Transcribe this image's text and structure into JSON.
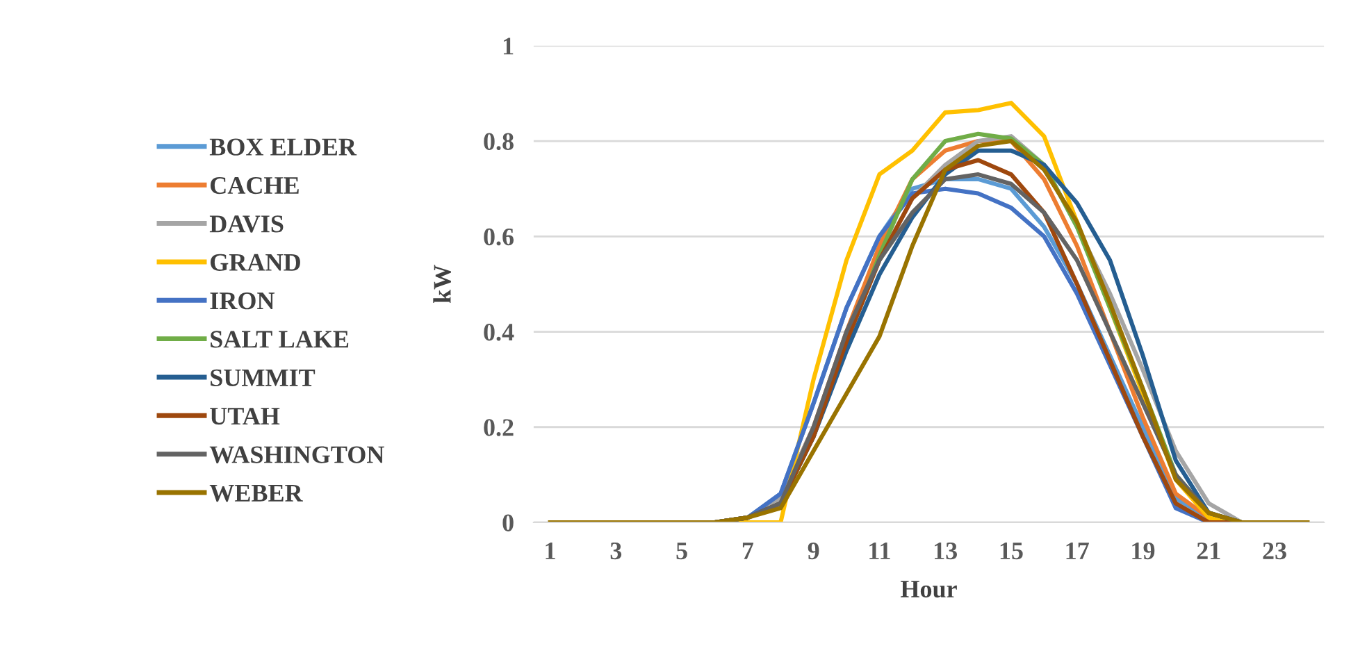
{
  "chart_data": {
    "type": "line",
    "xlabel": "Hour",
    "ylabel": "kW",
    "categories": [
      "1",
      null,
      "3",
      null,
      "5",
      null,
      "7",
      null,
      "9",
      null,
      "11",
      null,
      "13",
      null,
      "15",
      null,
      "17",
      null,
      "19",
      null,
      "21",
      null,
      "23",
      null
    ],
    "ylim": [
      0,
      1
    ],
    "yticks": [
      0,
      0.2,
      0.4,
      0.6,
      0.8,
      1
    ],
    "grid": "y",
    "legend": "left",
    "marker": "none",
    "line_style": "solid",
    "series": [
      {
        "name": "BOX ELDER",
        "color": "#5b9bd5",
        "values": [
          null,
          null,
          null,
          null,
          null,
          0,
          0.01,
          0.06,
          0.25,
          0.45,
          0.6,
          0.7,
          0.72,
          0.72,
          0.7,
          0.62,
          0.5,
          0.35,
          0.2,
          0.05,
          0.01,
          0,
          null,
          null
        ]
      },
      {
        "name": "CACHE",
        "color": "#ed7d31",
        "values": [
          null,
          null,
          null,
          null,
          null,
          0,
          0.01,
          0.05,
          0.2,
          0.4,
          0.58,
          0.72,
          0.78,
          0.8,
          0.8,
          0.72,
          0.58,
          0.4,
          0.22,
          0.06,
          0.01,
          0,
          null,
          null
        ]
      },
      {
        "name": "DAVIS",
        "color": "#a5a5a5",
        "values": [
          null,
          null,
          null,
          null,
          null,
          0,
          0.01,
          0.05,
          0.2,
          0.38,
          0.55,
          0.68,
          0.75,
          0.8,
          0.81,
          0.75,
          0.62,
          0.48,
          0.32,
          0.15,
          0.04,
          0,
          null,
          null
        ]
      },
      {
        "name": "GRAND",
        "color": "#ffc000",
        "values": [
          null,
          null,
          null,
          null,
          null,
          0,
          0,
          0,
          0.3,
          0.55,
          0.73,
          0.78,
          0.86,
          0.865,
          0.88,
          0.81,
          0.63,
          0.45,
          0.27,
          0.09,
          0.01,
          0,
          null,
          null
        ]
      },
      {
        "name": "IRON",
        "color": "#4472c4",
        "values": [
          null,
          null,
          null,
          null,
          null,
          0,
          0.01,
          0.06,
          0.25,
          0.45,
          0.6,
          0.69,
          0.7,
          0.69,
          0.66,
          0.6,
          0.48,
          0.33,
          0.18,
          0.03,
          0,
          0,
          null,
          null
        ]
      },
      {
        "name": "SALT LAKE",
        "color": "#70ad47",
        "values": [
          null,
          null,
          null,
          null,
          null,
          0,
          0.01,
          0.04,
          0.18,
          0.38,
          0.56,
          0.72,
          0.8,
          0.815,
          0.805,
          0.75,
          0.62,
          0.45,
          0.28,
          0.1,
          0.02,
          0,
          null,
          null
        ]
      },
      {
        "name": "SUMMIT",
        "color": "#255e91",
        "values": [
          null,
          null,
          null,
          null,
          null,
          0,
          0.01,
          0.04,
          0.18,
          0.36,
          0.52,
          0.64,
          0.73,
          0.78,
          0.78,
          0.75,
          0.67,
          0.55,
          0.35,
          0.13,
          0.02,
          0,
          null,
          null
        ]
      },
      {
        "name": "UTAH",
        "color": "#9e480e",
        "values": [
          null,
          null,
          null,
          null,
          null,
          0,
          0.01,
          0.04,
          0.18,
          0.38,
          0.55,
          0.68,
          0.74,
          0.76,
          0.73,
          0.65,
          0.5,
          0.34,
          0.18,
          0.04,
          0,
          0,
          null,
          null
        ]
      },
      {
        "name": "WASHINGTON",
        "color": "#636363",
        "values": [
          null,
          null,
          null,
          null,
          null,
          0,
          0.01,
          0.04,
          0.2,
          0.4,
          0.55,
          0.65,
          0.72,
          0.73,
          0.71,
          0.65,
          0.55,
          0.4,
          0.25,
          0.1,
          0.02,
          0,
          null,
          null
        ]
      },
      {
        "name": "WEBER",
        "color": "#997300",
        "values": [
          0,
          0,
          0,
          0,
          0,
          0,
          0.01,
          0.03,
          0.15,
          0.27,
          0.39,
          0.58,
          0.74,
          0.79,
          0.8,
          0.74,
          0.63,
          0.46,
          0.28,
          0.09,
          0.02,
          0,
          0,
          0
        ]
      }
    ]
  }
}
